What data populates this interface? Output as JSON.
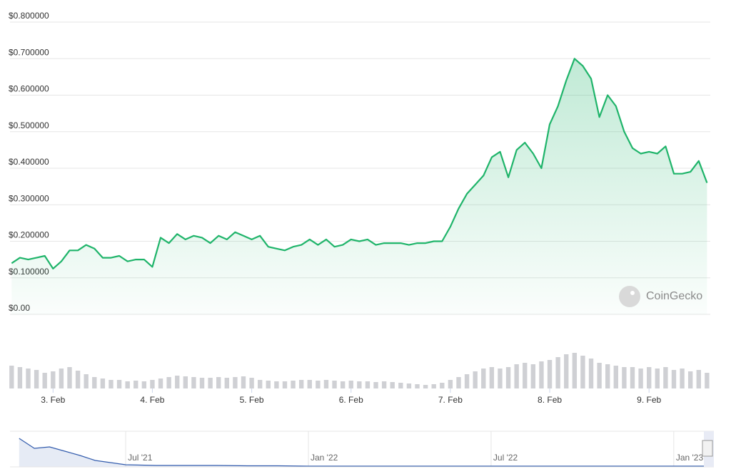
{
  "chart_data": [
    {
      "type": "line",
      "color": "#1fb46a",
      "annotation": "CoinGecko",
      "xlim": [
        -10.4,
        158.8
      ],
      "xticks": [
        {
          "value": 0,
          "label": "3. Feb"
        },
        {
          "value": 24,
          "label": "4. Feb"
        },
        {
          "value": 48,
          "label": "5. Feb"
        },
        {
          "value": 72,
          "label": "6. Feb"
        },
        {
          "value": 96,
          "label": "7. Feb"
        },
        {
          "value": 120,
          "label": "8. Feb"
        },
        {
          "value": 144,
          "label": "9. Feb"
        }
      ],
      "ylim": [
        0,
        0.8
      ],
      "yticks": [
        {
          "value": 0,
          "label": "$0.00"
        },
        {
          "value": 0.1,
          "label": "$0.100000"
        },
        {
          "value": 0.2,
          "label": "$0.200000"
        },
        {
          "value": 0.3,
          "label": "$0.300000"
        },
        {
          "value": 0.4,
          "label": "$0.400000"
        },
        {
          "value": 0.5,
          "label": "$0.500000"
        },
        {
          "value": 0.6,
          "label": "$0.600000"
        },
        {
          "value": 0.7,
          "label": "$0.700000"
        },
        {
          "value": 0.8,
          "label": "$0.800000"
        }
      ],
      "grid": true,
      "x": [
        -10,
        -8,
        -6,
        -4,
        -2,
        0,
        2,
        4,
        6,
        8,
        10,
        12,
        14,
        16,
        18,
        20,
        22,
        24,
        26,
        28,
        30,
        32,
        34,
        36,
        38,
        40,
        42,
        44,
        46,
        48,
        50,
        52,
        54,
        56,
        58,
        60,
        62,
        64,
        66,
        68,
        70,
        72,
        74,
        76,
        78,
        80,
        82,
        84,
        86,
        88,
        90,
        92,
        94,
        96,
        98,
        100,
        102,
        104,
        106,
        108,
        110,
        112,
        114,
        116,
        118,
        120,
        122,
        124,
        126,
        128,
        130,
        132,
        134,
        136,
        138,
        140,
        142,
        144,
        146,
        148,
        150,
        152,
        154,
        156,
        158
      ],
      "values": [
        0.14,
        0.155,
        0.15,
        0.155,
        0.16,
        0.125,
        0.145,
        0.175,
        0.175,
        0.19,
        0.18,
        0.155,
        0.155,
        0.16,
        0.145,
        0.15,
        0.15,
        0.13,
        0.21,
        0.195,
        0.22,
        0.205,
        0.215,
        0.21,
        0.195,
        0.215,
        0.205,
        0.225,
        0.215,
        0.205,
        0.215,
        0.185,
        0.18,
        0.175,
        0.185,
        0.19,
        0.205,
        0.19,
        0.205,
        0.185,
        0.19,
        0.205,
        0.2,
        0.205,
        0.19,
        0.195,
        0.195,
        0.195,
        0.19,
        0.195,
        0.195,
        0.2,
        0.2,
        0.24,
        0.29,
        0.33,
        0.355,
        0.38,
        0.43,
        0.445,
        0.375,
        0.45,
        0.47,
        0.44,
        0.4,
        0.52,
        0.57,
        0.64,
        0.7,
        0.68,
        0.645,
        0.54,
        0.6,
        0.57,
        0.5,
        0.455,
        0.44,
        0.445,
        0.44,
        0.46,
        0.385,
        0.385,
        0.39,
        0.42,
        0.36
      ]
    },
    {
      "type": "bar",
      "color": "#cfd0d4",
      "xlim": [
        -10.4,
        158.8
      ],
      "ylim": [
        0,
        55
      ],
      "x": [
        -10,
        -8,
        -6,
        -4,
        -2,
        0,
        2,
        4,
        6,
        8,
        10,
        12,
        14,
        16,
        18,
        20,
        22,
        24,
        26,
        28,
        30,
        32,
        34,
        36,
        38,
        40,
        42,
        44,
        46,
        48,
        50,
        52,
        54,
        56,
        58,
        60,
        62,
        64,
        66,
        68,
        70,
        72,
        74,
        76,
        78,
        80,
        82,
        84,
        86,
        88,
        90,
        92,
        94,
        96,
        98,
        100,
        102,
        104,
        106,
        108,
        110,
        112,
        114,
        116,
        118,
        120,
        122,
        124,
        126,
        128,
        130,
        132,
        134,
        136,
        138,
        140,
        142,
        144,
        146,
        148,
        150,
        152,
        154,
        156,
        158
      ],
      "values": [
        32,
        30,
        28,
        26,
        22,
        24,
        28,
        30,
        25,
        20,
        16,
        14,
        12,
        12,
        10,
        11,
        10,
        12,
        14,
        16,
        18,
        17,
        16,
        15,
        15,
        16,
        15,
        16,
        17,
        15,
        12,
        11,
        10,
        10,
        11,
        12,
        12,
        11,
        12,
        11,
        10,
        11,
        10,
        10,
        9,
        10,
        9,
        8,
        7,
        6,
        5,
        6,
        8,
        12,
        16,
        20,
        24,
        28,
        30,
        28,
        30,
        34,
        36,
        34,
        38,
        40,
        44,
        48,
        50,
        46,
        42,
        36,
        34,
        32,
        30,
        30,
        28,
        30,
        28,
        30,
        26,
        28,
        24,
        26,
        22
      ]
    },
    {
      "type": "line",
      "color": "#335cad",
      "xlim": [
        -3.8,
        19.2
      ],
      "ylim": [
        0,
        50
      ],
      "xticks": [
        {
          "value": 0,
          "label": "Jul '21"
        },
        {
          "value": 6,
          "label": "Jan '22"
        },
        {
          "value": 12,
          "label": "Jul '22"
        },
        {
          "value": 18,
          "label": "Jan '23"
        }
      ],
      "x": [
        -3.5,
        -3,
        -2.5,
        -2,
        -1.5,
        -1,
        0,
        1,
        2,
        3,
        4,
        5,
        6,
        7,
        8,
        9,
        10,
        11,
        12,
        13,
        14,
        15,
        16,
        17,
        18,
        19
      ],
      "values": [
        40,
        26,
        28,
        22,
        16,
        9,
        3,
        2,
        2,
        2,
        1.5,
        1.5,
        1,
        1,
        1,
        1,
        1,
        1,
        1,
        1,
        1,
        1,
        1,
        1,
        1,
        1
      ]
    }
  ]
}
